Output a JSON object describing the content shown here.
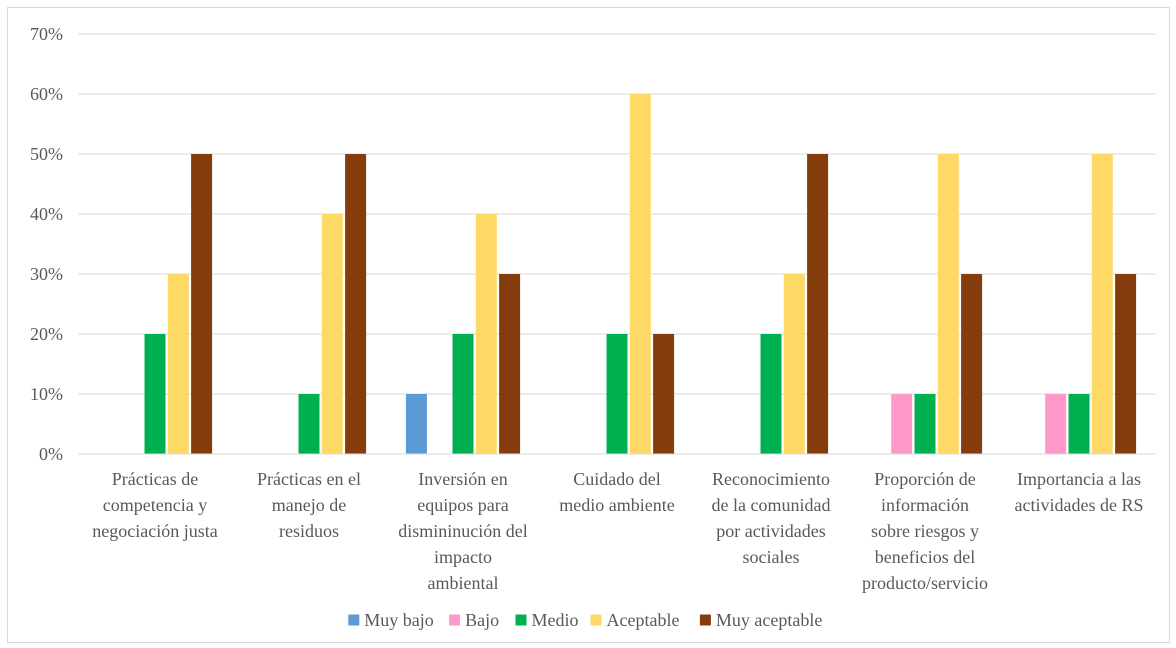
{
  "chart_data": {
    "type": "bar",
    "title": "",
    "xlabel": "",
    "ylabel": "",
    "ylim": [
      0,
      70
    ],
    "y_ticks": [
      0,
      10,
      20,
      30,
      40,
      50,
      60,
      70
    ],
    "y_tick_labels": [
      "0%",
      "10%",
      "20%",
      "30%",
      "40%",
      "50%",
      "60%",
      "70%"
    ],
    "grid": "horizontal",
    "legend_position": "bottom",
    "categories": [
      [
        "Prácticas de",
        "competencia y",
        "negociación justa"
      ],
      [
        "Prácticas en el",
        "manejo de",
        "residuos"
      ],
      [
        "Inversión en",
        "equipos para",
        "dismininución del",
        "impacto",
        "ambiental"
      ],
      [
        "Cuidado del",
        "medio ambiente"
      ],
      [
        "Reconocimiento",
        "de la comunidad",
        "por actividades",
        "sociales"
      ],
      [
        "Proporción de",
        "información",
        "sobre riesgos y",
        "beneficios del",
        "producto/servicio"
      ],
      [
        "Importancia a las",
        "actividades de RS"
      ]
    ],
    "series": [
      {
        "name": "Muy bajo",
        "color": "#5b9bd5",
        "values": [
          0,
          0,
          10,
          0,
          0,
          0,
          0
        ]
      },
      {
        "name": "Bajo",
        "color": "#ff99cc",
        "values": [
          0,
          0,
          0,
          0,
          0,
          10,
          10
        ]
      },
      {
        "name": "Medio",
        "color": "#00b050",
        "values": [
          20,
          10,
          20,
          20,
          20,
          10,
          10
        ]
      },
      {
        "name": "Aceptable",
        "color": "#ffd966",
        "values": [
          30,
          40,
          40,
          60,
          30,
          50,
          50
        ]
      },
      {
        "name": "Muy aceptable",
        "color": "#843c0c",
        "values": [
          50,
          50,
          30,
          20,
          50,
          30,
          30
        ]
      }
    ]
  }
}
